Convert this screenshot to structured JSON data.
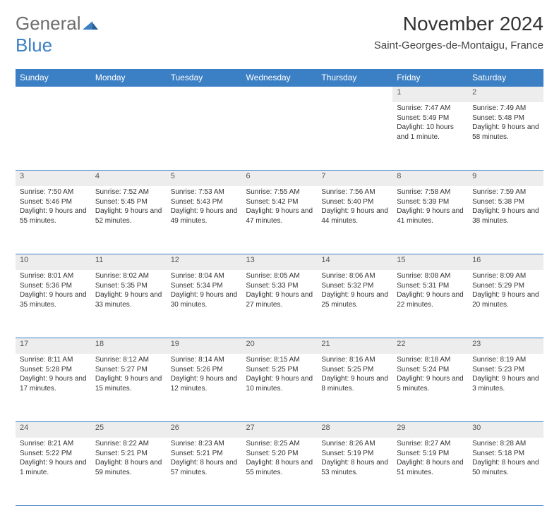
{
  "logo": {
    "general": "General",
    "blue": "Blue"
  },
  "title": "November 2024",
  "location": "Saint-Georges-de-Montaigu, France",
  "colors": {
    "accent": "#3b7fc4",
    "header_text": "#ffffff",
    "daynum_bg": "#ededed",
    "text": "#333333"
  },
  "day_headers": [
    "Sunday",
    "Monday",
    "Tuesday",
    "Wednesday",
    "Thursday",
    "Friday",
    "Saturday"
  ],
  "weeks": [
    [
      null,
      null,
      null,
      null,
      null,
      {
        "n": "1",
        "sr": "Sunrise: 7:47 AM",
        "ss": "Sunset: 5:49 PM",
        "dl": "Daylight: 10 hours and 1 minute."
      },
      {
        "n": "2",
        "sr": "Sunrise: 7:49 AM",
        "ss": "Sunset: 5:48 PM",
        "dl": "Daylight: 9 hours and 58 minutes."
      }
    ],
    [
      {
        "n": "3",
        "sr": "Sunrise: 7:50 AM",
        "ss": "Sunset: 5:46 PM",
        "dl": "Daylight: 9 hours and 55 minutes."
      },
      {
        "n": "4",
        "sr": "Sunrise: 7:52 AM",
        "ss": "Sunset: 5:45 PM",
        "dl": "Daylight: 9 hours and 52 minutes."
      },
      {
        "n": "5",
        "sr": "Sunrise: 7:53 AM",
        "ss": "Sunset: 5:43 PM",
        "dl": "Daylight: 9 hours and 49 minutes."
      },
      {
        "n": "6",
        "sr": "Sunrise: 7:55 AM",
        "ss": "Sunset: 5:42 PM",
        "dl": "Daylight: 9 hours and 47 minutes."
      },
      {
        "n": "7",
        "sr": "Sunrise: 7:56 AM",
        "ss": "Sunset: 5:40 PM",
        "dl": "Daylight: 9 hours and 44 minutes."
      },
      {
        "n": "8",
        "sr": "Sunrise: 7:58 AM",
        "ss": "Sunset: 5:39 PM",
        "dl": "Daylight: 9 hours and 41 minutes."
      },
      {
        "n": "9",
        "sr": "Sunrise: 7:59 AM",
        "ss": "Sunset: 5:38 PM",
        "dl": "Daylight: 9 hours and 38 minutes."
      }
    ],
    [
      {
        "n": "10",
        "sr": "Sunrise: 8:01 AM",
        "ss": "Sunset: 5:36 PM",
        "dl": "Daylight: 9 hours and 35 minutes."
      },
      {
        "n": "11",
        "sr": "Sunrise: 8:02 AM",
        "ss": "Sunset: 5:35 PM",
        "dl": "Daylight: 9 hours and 33 minutes."
      },
      {
        "n": "12",
        "sr": "Sunrise: 8:04 AM",
        "ss": "Sunset: 5:34 PM",
        "dl": "Daylight: 9 hours and 30 minutes."
      },
      {
        "n": "13",
        "sr": "Sunrise: 8:05 AM",
        "ss": "Sunset: 5:33 PM",
        "dl": "Daylight: 9 hours and 27 minutes."
      },
      {
        "n": "14",
        "sr": "Sunrise: 8:06 AM",
        "ss": "Sunset: 5:32 PM",
        "dl": "Daylight: 9 hours and 25 minutes."
      },
      {
        "n": "15",
        "sr": "Sunrise: 8:08 AM",
        "ss": "Sunset: 5:31 PM",
        "dl": "Daylight: 9 hours and 22 minutes."
      },
      {
        "n": "16",
        "sr": "Sunrise: 8:09 AM",
        "ss": "Sunset: 5:29 PM",
        "dl": "Daylight: 9 hours and 20 minutes."
      }
    ],
    [
      {
        "n": "17",
        "sr": "Sunrise: 8:11 AM",
        "ss": "Sunset: 5:28 PM",
        "dl": "Daylight: 9 hours and 17 minutes."
      },
      {
        "n": "18",
        "sr": "Sunrise: 8:12 AM",
        "ss": "Sunset: 5:27 PM",
        "dl": "Daylight: 9 hours and 15 minutes."
      },
      {
        "n": "19",
        "sr": "Sunrise: 8:14 AM",
        "ss": "Sunset: 5:26 PM",
        "dl": "Daylight: 9 hours and 12 minutes."
      },
      {
        "n": "20",
        "sr": "Sunrise: 8:15 AM",
        "ss": "Sunset: 5:25 PM",
        "dl": "Daylight: 9 hours and 10 minutes."
      },
      {
        "n": "21",
        "sr": "Sunrise: 8:16 AM",
        "ss": "Sunset: 5:25 PM",
        "dl": "Daylight: 9 hours and 8 minutes."
      },
      {
        "n": "22",
        "sr": "Sunrise: 8:18 AM",
        "ss": "Sunset: 5:24 PM",
        "dl": "Daylight: 9 hours and 5 minutes."
      },
      {
        "n": "23",
        "sr": "Sunrise: 8:19 AM",
        "ss": "Sunset: 5:23 PM",
        "dl": "Daylight: 9 hours and 3 minutes."
      }
    ],
    [
      {
        "n": "24",
        "sr": "Sunrise: 8:21 AM",
        "ss": "Sunset: 5:22 PM",
        "dl": "Daylight: 9 hours and 1 minute."
      },
      {
        "n": "25",
        "sr": "Sunrise: 8:22 AM",
        "ss": "Sunset: 5:21 PM",
        "dl": "Daylight: 8 hours and 59 minutes."
      },
      {
        "n": "26",
        "sr": "Sunrise: 8:23 AM",
        "ss": "Sunset: 5:21 PM",
        "dl": "Daylight: 8 hours and 57 minutes."
      },
      {
        "n": "27",
        "sr": "Sunrise: 8:25 AM",
        "ss": "Sunset: 5:20 PM",
        "dl": "Daylight: 8 hours and 55 minutes."
      },
      {
        "n": "28",
        "sr": "Sunrise: 8:26 AM",
        "ss": "Sunset: 5:19 PM",
        "dl": "Daylight: 8 hours and 53 minutes."
      },
      {
        "n": "29",
        "sr": "Sunrise: 8:27 AM",
        "ss": "Sunset: 5:19 PM",
        "dl": "Daylight: 8 hours and 51 minutes."
      },
      {
        "n": "30",
        "sr": "Sunrise: 8:28 AM",
        "ss": "Sunset: 5:18 PM",
        "dl": "Daylight: 8 hours and 50 minutes."
      }
    ]
  ]
}
